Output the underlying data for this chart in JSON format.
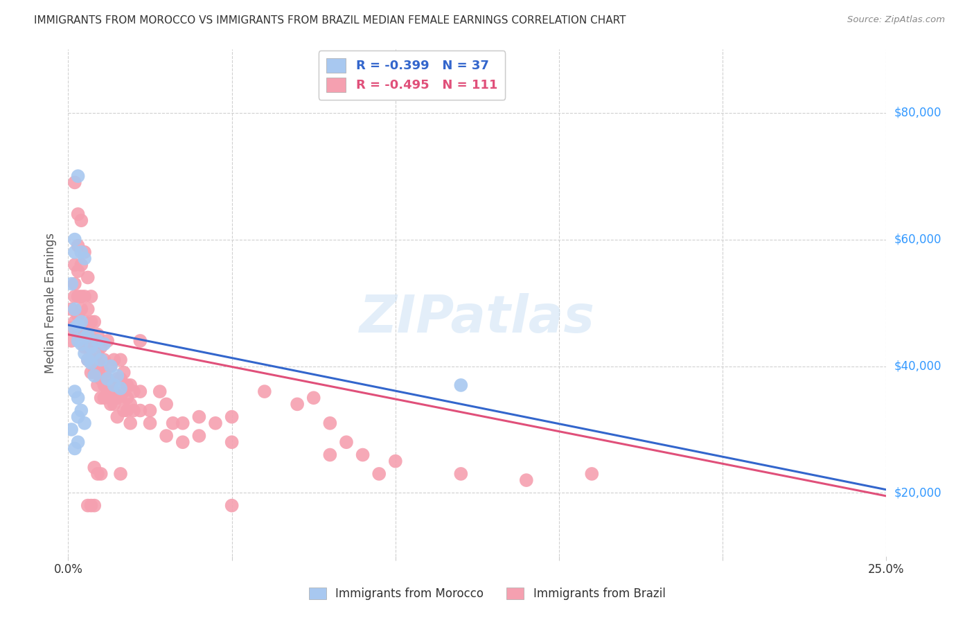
{
  "title": "IMMIGRANTS FROM MOROCCO VS IMMIGRANTS FROM BRAZIL MEDIAN FEMALE EARNINGS CORRELATION CHART",
  "source": "Source: ZipAtlas.com",
  "ylabel": "Median Female Earnings",
  "yticks": [
    20000,
    40000,
    60000,
    80000
  ],
  "ytick_labels": [
    "$20,000",
    "$40,000",
    "$60,000",
    "$80,000"
  ],
  "xlim": [
    0,
    0.25
  ],
  "ylim": [
    10000,
    90000
  ],
  "legend_morocco": "R = -0.399   N = 37",
  "legend_brazil": "R = -0.495   N = 111",
  "legend_label_morocco": "Immigrants from Morocco",
  "legend_label_brazil": "Immigrants from Brazil",
  "watermark": "ZIPatlas",
  "morocco_color": "#a8c8f0",
  "brazil_color": "#f5a0b0",
  "morocco_line_color": "#3366cc",
  "brazil_line_color": "#e0507a",
  "morocco_line": [
    [
      0.0,
      46500
    ],
    [
      0.25,
      20500
    ]
  ],
  "brazil_line": [
    [
      0.0,
      45000
    ],
    [
      0.25,
      19500
    ]
  ],
  "morocco_scatter": [
    [
      0.001,
      53000
    ],
    [
      0.002,
      49000
    ],
    [
      0.002,
      46000
    ],
    [
      0.003,
      46500
    ],
    [
      0.003,
      44000
    ],
    [
      0.004,
      47000
    ],
    [
      0.004,
      43500
    ],
    [
      0.005,
      44500
    ],
    [
      0.005,
      42000
    ],
    [
      0.006,
      45000
    ],
    [
      0.006,
      41000
    ],
    [
      0.007,
      43000
    ],
    [
      0.007,
      40500
    ],
    [
      0.008,
      42000
    ],
    [
      0.008,
      38500
    ],
    [
      0.009,
      44000
    ],
    [
      0.01,
      41000
    ],
    [
      0.011,
      43500
    ],
    [
      0.012,
      38000
    ],
    [
      0.013,
      40000
    ],
    [
      0.014,
      37000
    ],
    [
      0.015,
      38500
    ],
    [
      0.016,
      36500
    ],
    [
      0.003,
      70000
    ],
    [
      0.002,
      60000
    ],
    [
      0.002,
      58000
    ],
    [
      0.004,
      58000
    ],
    [
      0.005,
      57000
    ],
    [
      0.003,
      35000
    ],
    [
      0.002,
      36000
    ],
    [
      0.001,
      30000
    ],
    [
      0.003,
      32000
    ],
    [
      0.004,
      33000
    ],
    [
      0.005,
      31000
    ],
    [
      0.002,
      27000
    ],
    [
      0.003,
      28000
    ],
    [
      0.12,
      37000
    ]
  ],
  "brazil_scatter": [
    [
      0.001,
      46000
    ],
    [
      0.001,
      44000
    ],
    [
      0.001,
      49000
    ],
    [
      0.002,
      51000
    ],
    [
      0.002,
      53000
    ],
    [
      0.002,
      47000
    ],
    [
      0.002,
      56000
    ],
    [
      0.003,
      59000
    ],
    [
      0.003,
      55000
    ],
    [
      0.003,
      51000
    ],
    [
      0.003,
      48000
    ],
    [
      0.003,
      45000
    ],
    [
      0.004,
      63000
    ],
    [
      0.004,
      56000
    ],
    [
      0.004,
      51000
    ],
    [
      0.004,
      49000
    ],
    [
      0.005,
      58000
    ],
    [
      0.005,
      51000
    ],
    [
      0.005,
      47000
    ],
    [
      0.005,
      45000
    ],
    [
      0.005,
      43000
    ],
    [
      0.006,
      54000
    ],
    [
      0.006,
      49000
    ],
    [
      0.006,
      46000
    ],
    [
      0.006,
      43000
    ],
    [
      0.006,
      41000
    ],
    [
      0.007,
      51000
    ],
    [
      0.007,
      47000
    ],
    [
      0.007,
      44000
    ],
    [
      0.007,
      41000
    ],
    [
      0.007,
      39000
    ],
    [
      0.008,
      47000
    ],
    [
      0.008,
      44000
    ],
    [
      0.008,
      41000
    ],
    [
      0.008,
      39000
    ],
    [
      0.009,
      45000
    ],
    [
      0.009,
      42000
    ],
    [
      0.009,
      39000
    ],
    [
      0.009,
      37000
    ],
    [
      0.01,
      43000
    ],
    [
      0.01,
      40000
    ],
    [
      0.01,
      38000
    ],
    [
      0.01,
      35000
    ],
    [
      0.011,
      41000
    ],
    [
      0.011,
      39000
    ],
    [
      0.011,
      37000
    ],
    [
      0.011,
      35000
    ],
    [
      0.012,
      44000
    ],
    [
      0.012,
      38000
    ],
    [
      0.012,
      36000
    ],
    [
      0.013,
      40000
    ],
    [
      0.013,
      37000
    ],
    [
      0.013,
      34000
    ],
    [
      0.014,
      41000
    ],
    [
      0.014,
      36000
    ],
    [
      0.014,
      34000
    ],
    [
      0.015,
      38000
    ],
    [
      0.015,
      35000
    ],
    [
      0.015,
      32000
    ],
    [
      0.016,
      41000
    ],
    [
      0.016,
      38000
    ],
    [
      0.016,
      35000
    ],
    [
      0.017,
      39000
    ],
    [
      0.017,
      36000
    ],
    [
      0.017,
      33000
    ],
    [
      0.018,
      37000
    ],
    [
      0.018,
      35000
    ],
    [
      0.018,
      33000
    ],
    [
      0.019,
      37000
    ],
    [
      0.019,
      34000
    ],
    [
      0.019,
      31000
    ],
    [
      0.02,
      36000
    ],
    [
      0.02,
      33000
    ],
    [
      0.022,
      44000
    ],
    [
      0.022,
      36000
    ],
    [
      0.022,
      33000
    ],
    [
      0.025,
      33000
    ],
    [
      0.025,
      31000
    ],
    [
      0.028,
      36000
    ],
    [
      0.03,
      34000
    ],
    [
      0.03,
      29000
    ],
    [
      0.032,
      31000
    ],
    [
      0.035,
      31000
    ],
    [
      0.035,
      28000
    ],
    [
      0.04,
      32000
    ],
    [
      0.04,
      29000
    ],
    [
      0.045,
      31000
    ],
    [
      0.05,
      32000
    ],
    [
      0.05,
      28000
    ],
    [
      0.06,
      36000
    ],
    [
      0.07,
      34000
    ],
    [
      0.075,
      35000
    ],
    [
      0.08,
      31000
    ],
    [
      0.085,
      28000
    ],
    [
      0.09,
      26000
    ],
    [
      0.095,
      23000
    ],
    [
      0.1,
      25000
    ],
    [
      0.12,
      23000
    ],
    [
      0.002,
      69000
    ],
    [
      0.003,
      64000
    ],
    [
      0.008,
      24000
    ],
    [
      0.009,
      23000
    ],
    [
      0.01,
      23000
    ],
    [
      0.016,
      23000
    ],
    [
      0.14,
      22000
    ],
    [
      0.16,
      23000
    ],
    [
      0.08,
      26000
    ],
    [
      0.05,
      18000
    ],
    [
      0.006,
      18000
    ],
    [
      0.007,
      18000
    ],
    [
      0.008,
      18000
    ]
  ]
}
